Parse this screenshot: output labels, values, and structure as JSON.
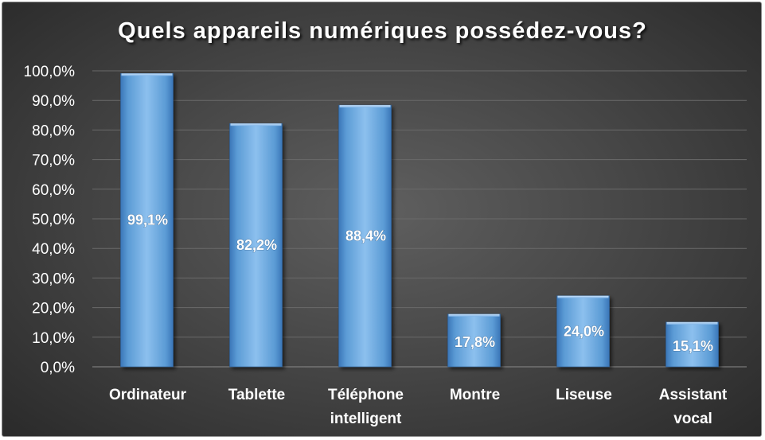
{
  "chart_data": {
    "type": "bar",
    "title": "Quels appareils numériques possédez-vous?",
    "categories": [
      [
        "Ordinateur"
      ],
      [
        "Tablette"
      ],
      [
        "Téléphone",
        "intelligent"
      ],
      [
        "Montre"
      ],
      [
        "Liseuse"
      ],
      [
        "Assistant",
        "vocal"
      ]
    ],
    "values": [
      99.1,
      82.2,
      88.4,
      17.8,
      24.0,
      15.1
    ],
    "data_labels": [
      "99,1%",
      "82,2%",
      "88,4%",
      "17,8%",
      "24,0%",
      "15,1%"
    ],
    "y_ticks": [
      "0,0%",
      "10,0%",
      "20,0%",
      "30,0%",
      "40,0%",
      "50,0%",
      "60,0%",
      "70,0%",
      "80,0%",
      "90,0%",
      "100,0%"
    ],
    "ylim": [
      0,
      100
    ],
    "grid": true,
    "legend": "none",
    "colors": {
      "bar": "#5b9bd5",
      "background": "#404040",
      "text": "#ffffff",
      "grid": "#6a6a6a"
    }
  }
}
